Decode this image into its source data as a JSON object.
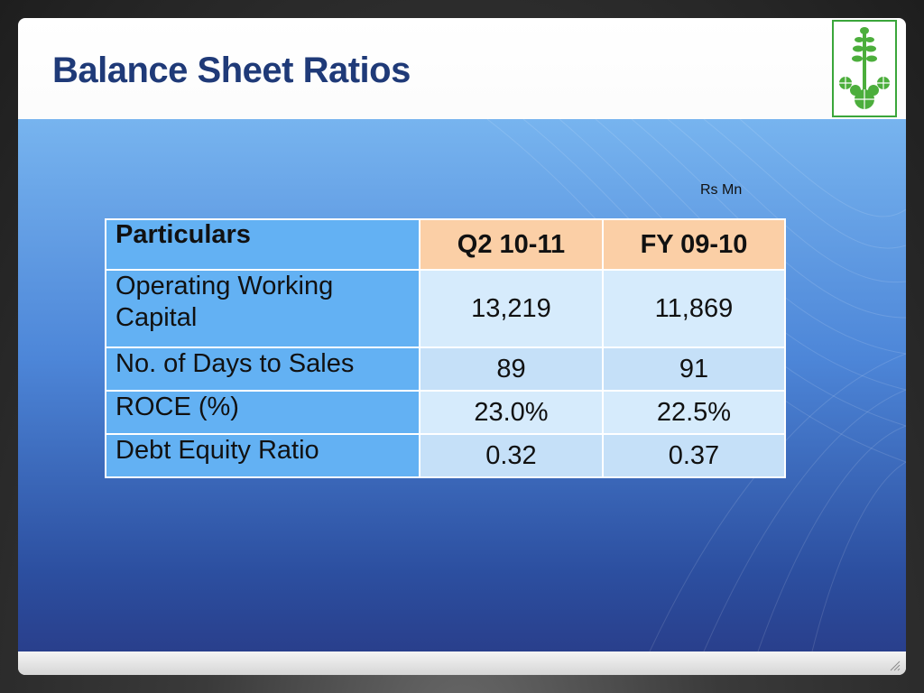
{
  "slide": {
    "title": "Balance Sheet Ratios",
    "unit": "Rs Mn"
  },
  "logo": {
    "icon": "leaf-emblem-icon",
    "color": "#3aa63a"
  },
  "table": {
    "headers": [
      "Particulars",
      "Q2 10-11",
      "FY 09-10"
    ],
    "rows": [
      {
        "label": "Operating Working Capital",
        "q2_10_11": "13,219",
        "fy_09_10": "11,869"
      },
      {
        "label": "No. of Days to Sales",
        "q2_10_11": "89",
        "fy_09_10": "91"
      },
      {
        "label": "ROCE (%)",
        "q2_10_11": "23.0%",
        "fy_09_10": "22.5%"
      },
      {
        "label": "Debt Equity Ratio",
        "q2_10_11": "0.32",
        "fy_09_10": "0.37"
      }
    ]
  },
  "colors": {
    "title": "#1f3a78",
    "header_label_bg": "#63b1f3",
    "header_period_bg": "#fbcfa6",
    "cell_light": "#d6ebfc",
    "cell_alt": "#c5e0f8"
  }
}
